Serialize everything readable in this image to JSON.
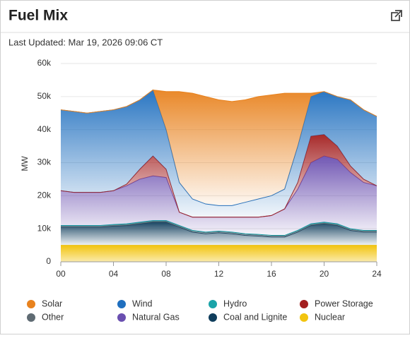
{
  "header": {
    "title": "Fuel Mix",
    "last_updated": "Last Updated: Mar 19, 2026 09:06 CT"
  },
  "chart_data": {
    "type": "area",
    "stacked": true,
    "y_label": "MW",
    "x": [
      0,
      1,
      2,
      3,
      4,
      5,
      6,
      7,
      8,
      9,
      10,
      11,
      12,
      13,
      14,
      15,
      16,
      17,
      18,
      19,
      20,
      21,
      22,
      23,
      24
    ],
    "xlim": [
      0,
      24
    ],
    "xticks": [
      {
        "value": 0,
        "label": "00"
      },
      {
        "value": 4,
        "label": "04"
      },
      {
        "value": 8,
        "label": "08"
      },
      12,
      16,
      20,
      24
    ],
    "ylim": [
      0,
      60000
    ],
    "yticks": [
      0,
      {
        "value": 10000,
        "label": "10k"
      },
      {
        "value": 20000,
        "label": "20k"
      },
      {
        "value": 30000,
        "label": "30k"
      },
      {
        "value": 40000,
        "label": "40k"
      },
      {
        "value": 50000,
        "label": "50k"
      },
      {
        "value": 60000,
        "label": "60k"
      }
    ],
    "grid": true,
    "legend": "bottom",
    "series": [
      {
        "name": "Solar",
        "color": "#e8821e",
        "values": [
          0,
          0,
          0,
          0,
          0,
          0,
          0,
          0,
          11500,
          27500,
          32000,
          32500,
          32000,
          31500,
          31000,
          31000,
          30500,
          29000,
          16000,
          1000,
          0,
          0,
          0,
          0,
          0
        ]
      },
      {
        "name": "Wind",
        "color": "#1f6fbf",
        "values": [
          24500,
          24500,
          24000,
          24500,
          24500,
          23500,
          21000,
          20000,
          12000,
          9000,
          5500,
          4000,
          3500,
          3500,
          4500,
          5500,
          6000,
          6000,
          11000,
          12000,
          13000,
          15000,
          20000,
          21000,
          21000
        ]
      },
      {
        "name": "Hydro",
        "color": "#1aa3a8",
        "values": [
          200,
          200,
          200,
          200,
          200,
          200,
          200,
          200,
          200,
          200,
          200,
          200,
          200,
          200,
          200,
          200,
          200,
          200,
          200,
          200,
          200,
          200,
          200,
          200,
          200
        ]
      },
      {
        "name": "Power Storage",
        "color": "#a31f1f",
        "values": [
          0,
          0,
          0,
          0,
          0,
          500,
          3000,
          6000,
          2500,
          0,
          0,
          0,
          0,
          0,
          0,
          0,
          0,
          0,
          2000,
          8000,
          6500,
          4000,
          2000,
          1000,
          0
        ]
      },
      {
        "name": "Other",
        "color": "#5f6b73",
        "values": [
          300,
          300,
          300,
          300,
          300,
          300,
          300,
          300,
          300,
          300,
          300,
          300,
          300,
          300,
          300,
          300,
          300,
          300,
          300,
          300,
          300,
          300,
          300,
          300,
          300
        ]
      },
      {
        "name": "Natural Gas",
        "color": "#6a4fb0",
        "values": [
          10500,
          10000,
          10000,
          10000,
          10200,
          11500,
          13000,
          13500,
          13000,
          4000,
          4000,
          4500,
          4200,
          4500,
          5000,
          5200,
          6000,
          8000,
          12500,
          18500,
          20000,
          19500,
          17000,
          14500,
          13500
        ]
      },
      {
        "name": "Coal and Lignite",
        "color": "#0f3d5c",
        "values": [
          5500,
          5500,
          5500,
          5500,
          5800,
          6000,
          6500,
          7000,
          7000,
          5500,
          4000,
          3500,
          3800,
          3500,
          3000,
          2800,
          2500,
          2500,
          4000,
          6000,
          6500,
          6000,
          4500,
          4000,
          4000
        ]
      },
      {
        "name": "Nuclear",
        "color": "#f2c40f",
        "values": [
          5000,
          5000,
          5000,
          5000,
          5000,
          5000,
          5000,
          5000,
          5000,
          5000,
          5000,
          5000,
          5000,
          5000,
          5000,
          5000,
          5000,
          5000,
          5000,
          5000,
          5000,
          5000,
          5000,
          5000,
          5000
        ]
      }
    ]
  }
}
